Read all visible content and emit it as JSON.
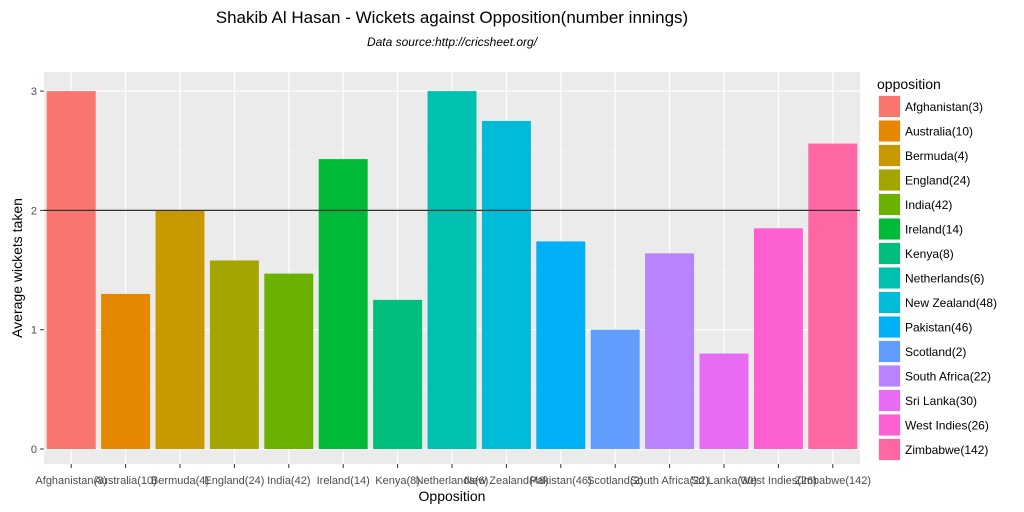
{
  "chart_data": {
    "type": "bar",
    "title": "Shakib Al Hasan - Wickets against Opposition(number innings)",
    "subtitle": "Data source:http://cricsheet.org/",
    "xlabel": "Opposition",
    "ylabel": "Average wickets taken",
    "ylim": [
      0,
      3.2
    ],
    "yticks": [
      0,
      1,
      2,
      3
    ],
    "grid": true,
    "legend_title": "opposition",
    "legend_position": "right",
    "reference_line": 2,
    "categories": [
      "Afghanistan(3)",
      "Australia(10)",
      "Bermuda(4)",
      "England(24)",
      "India(42)",
      "Ireland(14)",
      "Kenya(8)",
      "Netherlands(6)",
      "New Zealand(48)",
      "Pakistan(46)",
      "Scotland(2)",
      "South Africa(22)",
      "Sri Lanka(30)",
      "West Indies(26)",
      "Zimbabwe(142)"
    ],
    "values": [
      3.0,
      1.3,
      2.0,
      1.58,
      1.47,
      2.43,
      1.25,
      3.0,
      2.75,
      1.74,
      1.0,
      1.64,
      0.8,
      1.85,
      2.56
    ],
    "colors": [
      "#F8766D",
      "#E58700",
      "#C99800",
      "#A3A500",
      "#6BB100",
      "#00BA38",
      "#00BF7D",
      "#00C0AF",
      "#00BCD8",
      "#00B0F6",
      "#619CFF",
      "#B983FF",
      "#E76BF3",
      "#FD61D1",
      "#FF67A4"
    ]
  }
}
